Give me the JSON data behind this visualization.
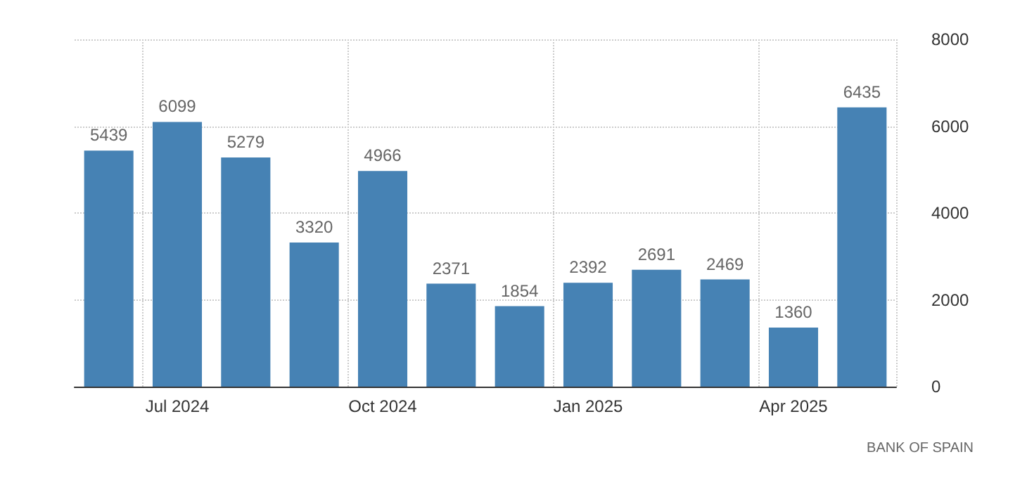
{
  "chart_data": {
    "type": "bar",
    "categories": [
      null,
      "Jul 2024",
      null,
      null,
      "Oct 2024",
      null,
      null,
      "Jan 2025",
      null,
      null,
      "Apr 2025",
      null
    ],
    "values": [
      5439,
      6099,
      5279,
      3320,
      4966,
      2371,
      1854,
      2392,
      2691,
      2469,
      1360,
      6435
    ],
    "color": "#4682b4",
    "ylim": [
      0,
      8000
    ],
    "yticks": [
      0,
      2000,
      4000,
      6000,
      8000
    ],
    "grid": true,
    "data_labels": true,
    "annotations": [
      "BANK OF SPAIN"
    ]
  }
}
